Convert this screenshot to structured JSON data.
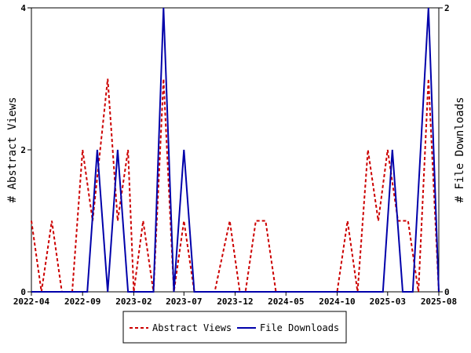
{
  "chart_data": {
    "type": "line",
    "x_tick_labels": [
      "2022-04",
      "2022-09",
      "2023-02",
      "2023-07",
      "2023-12",
      "2024-05",
      "2024-10",
      "2025-03",
      "2025-08"
    ],
    "x_start": "2022-04",
    "x_end": "2025-08",
    "left_axis": {
      "label": "# Abstract Views",
      "range": [
        0,
        4
      ],
      "ticks": [
        "0",
        "2",
        "4"
      ]
    },
    "right_axis": {
      "label": "# File Downloads",
      "range": [
        0,
        2
      ],
      "ticks": [
        "0",
        "2"
      ]
    },
    "series": [
      {
        "name": "Abstract Views",
        "axis": "left",
        "color": "#cc0000",
        "style": "dashed",
        "points": [
          [
            "2022-04-01",
            1
          ],
          [
            "2022-05-01",
            0
          ],
          [
            "2022-06-01",
            1
          ],
          [
            "2022-07-01",
            0
          ],
          [
            "2022-08-01",
            0
          ],
          [
            "2022-09-01",
            2
          ],
          [
            "2022-10-01",
            1
          ],
          [
            "2022-11-15",
            3
          ],
          [
            "2022-12-15",
            1
          ],
          [
            "2023-01-15",
            2
          ],
          [
            "2023-02-01",
            0
          ],
          [
            "2023-03-01",
            1
          ],
          [
            "2023-04-01",
            0
          ],
          [
            "2023-05-01",
            3
          ],
          [
            "2023-06-01",
            0
          ],
          [
            "2023-07-01",
            1
          ],
          [
            "2023-08-01",
            0
          ],
          [
            "2023-09-01",
            0
          ],
          [
            "2023-10-01",
            0
          ],
          [
            "2023-11-15",
            1
          ],
          [
            "2023-12-15",
            0
          ],
          [
            "2024-01-01",
            0
          ],
          [
            "2024-02-01",
            1
          ],
          [
            "2024-03-01",
            1
          ],
          [
            "2024-04-01",
            0
          ],
          [
            "2024-05-01",
            0
          ],
          [
            "2024-06-01",
            0
          ],
          [
            "2024-07-01",
            0
          ],
          [
            "2024-08-01",
            0
          ],
          [
            "2024-09-01",
            0
          ],
          [
            "2024-10-01",
            0
          ],
          [
            "2024-11-01",
            1
          ],
          [
            "2024-12-01",
            0
          ],
          [
            "2025-01-01",
            2
          ],
          [
            "2025-02-01",
            1
          ],
          [
            "2025-03-01",
            2
          ],
          [
            "2025-04-01",
            1
          ],
          [
            "2025-05-01",
            1
          ],
          [
            "2025-06-01",
            0
          ],
          [
            "2025-07-01",
            3
          ],
          [
            "2025-08-01",
            0
          ]
        ]
      },
      {
        "name": "File Downloads",
        "axis": "right",
        "color": "#0000aa",
        "style": "solid",
        "points": [
          [
            "2022-04-01",
            0
          ],
          [
            "2022-09-15",
            0
          ],
          [
            "2022-10-15",
            1
          ],
          [
            "2022-11-15",
            0
          ],
          [
            "2022-12-15",
            1
          ],
          [
            "2023-01-15",
            0
          ],
          [
            "2023-04-01",
            0
          ],
          [
            "2023-05-01",
            2
          ],
          [
            "2023-06-01",
            0
          ],
          [
            "2023-07-01",
            1
          ],
          [
            "2023-08-01",
            0
          ],
          [
            "2025-02-15",
            0
          ],
          [
            "2025-03-15",
            1
          ],
          [
            "2025-04-15",
            0
          ],
          [
            "2025-05-15",
            0
          ],
          [
            "2025-07-01",
            2
          ],
          [
            "2025-08-01",
            0
          ]
        ]
      }
    ],
    "grid": false,
    "legend_position": "bottom-center"
  }
}
